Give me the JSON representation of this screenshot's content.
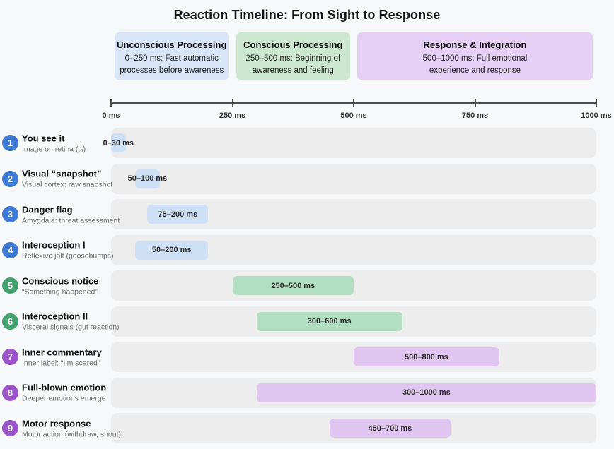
{
  "title": "Reaction Timeline: From Sight to Response",
  "colors": {
    "background": "#f7f8fa",
    "track": "#ededed",
    "axis": "#4d4d4d",
    "circle": {
      "blue": "#3e79d6",
      "green": "#42a16e",
      "purple": "#9c54cb"
    },
    "bar": {
      "blue": "#cde0f6",
      "green": "#b2dfc1",
      "purple": "#e0c5f1"
    }
  },
  "phases": [
    {
      "title": "Unconscious Processing",
      "subtitle": "0–250 ms: Fast automatic processes before awareness",
      "start_ms": 0,
      "end_ms": 250,
      "bg": "#d8e6f7"
    },
    {
      "title": "Conscious Processing",
      "subtitle": "250–500 ms: Beginning of awareness and feeling",
      "start_ms": 250,
      "end_ms": 500,
      "bg": "#cde8d1"
    },
    {
      "title": "Response & Integration",
      "subtitle": "500–1000 ms: Full emotional experience and response",
      "start_ms": 500,
      "end_ms": 1000,
      "bg": "#e6d0f5"
    }
  ],
  "axis": {
    "min": 0,
    "max": 1000,
    "unit": "ms",
    "ticks": [
      {
        "value": 0,
        "label": "0 ms"
      },
      {
        "value": 250,
        "label": "250 ms"
      },
      {
        "value": 500,
        "label": "500 ms"
      },
      {
        "value": 750,
        "label": "750 ms"
      },
      {
        "value": 1000,
        "label": "1000 ms"
      }
    ]
  },
  "rows": [
    {
      "num": "1",
      "title": "You see it",
      "subtitle": "Image on retina (t₀)",
      "range_label": "0–30 ms",
      "start_ms": 0,
      "end_ms": 30,
      "color": "blue"
    },
    {
      "num": "2",
      "title": "Visual “snapshot”",
      "subtitle": "Visual cortex: raw snapshot",
      "range_label": "50–100 ms",
      "start_ms": 50,
      "end_ms": 100,
      "color": "blue"
    },
    {
      "num": "3",
      "title": "Danger flag",
      "subtitle": "Amygdala: threat assessment",
      "range_label": "75–200 ms",
      "start_ms": 75,
      "end_ms": 200,
      "color": "blue"
    },
    {
      "num": "4",
      "title": "Interoception I",
      "subtitle": "Reflexive jolt (goosebumps)",
      "range_label": "50–200 ms",
      "start_ms": 50,
      "end_ms": 200,
      "color": "blue"
    },
    {
      "num": "5",
      "title": "Conscious notice",
      "subtitle": "“Something happened”",
      "range_label": "250–500 ms",
      "start_ms": 250,
      "end_ms": 500,
      "color": "green"
    },
    {
      "num": "6",
      "title": "Interoception II",
      "subtitle": "Visceral signals (gut reaction)",
      "range_label": "300–600 ms",
      "start_ms": 300,
      "end_ms": 600,
      "color": "green"
    },
    {
      "num": "7",
      "title": "Inner commentary",
      "subtitle": "Inner label: “I’m scared”",
      "range_label": "500–800 ms",
      "start_ms": 500,
      "end_ms": 800,
      "color": "purple"
    },
    {
      "num": "8",
      "title": "Full-blown emotion",
      "subtitle": "Deeper emotions emerge",
      "range_label": "300–1000 ms",
      "start_ms": 300,
      "end_ms": 1000,
      "color": "purple"
    },
    {
      "num": "9",
      "title": "Motor response",
      "subtitle": "Motor action (withdraw, shout)",
      "range_label": "450–700 ms",
      "start_ms": 450,
      "end_ms": 700,
      "color": "purple"
    }
  ],
  "chart_data": {
    "type": "bar",
    "variant": "gantt-timeline",
    "title": "Reaction Timeline: From Sight to Response",
    "xlabel": "ms",
    "xlim": [
      0,
      1000
    ],
    "x_ticks": [
      0,
      250,
      500,
      750,
      1000
    ],
    "grid": false,
    "legend": false,
    "categories": [
      "You see it",
      "Visual “snapshot”",
      "Danger flag",
      "Interoception I",
      "Conscious notice",
      "Interoception II",
      "Inner commentary",
      "Full-blown emotion",
      "Motor response"
    ],
    "series": [
      {
        "name": "duration_ms",
        "values": [
          [
            0,
            30
          ],
          [
            50,
            100
          ],
          [
            75,
            200
          ],
          [
            50,
            200
          ],
          [
            250,
            500
          ],
          [
            300,
            600
          ],
          [
            500,
            800
          ],
          [
            300,
            1000
          ],
          [
            450,
            700
          ]
        ]
      }
    ],
    "phases": [
      {
        "label": "Unconscious Processing",
        "range_ms": [
          0,
          250
        ]
      },
      {
        "label": "Conscious Processing",
        "range_ms": [
          250,
          500
        ]
      },
      {
        "label": "Response & Integration",
        "range_ms": [
          500,
          1000
        ]
      }
    ]
  }
}
